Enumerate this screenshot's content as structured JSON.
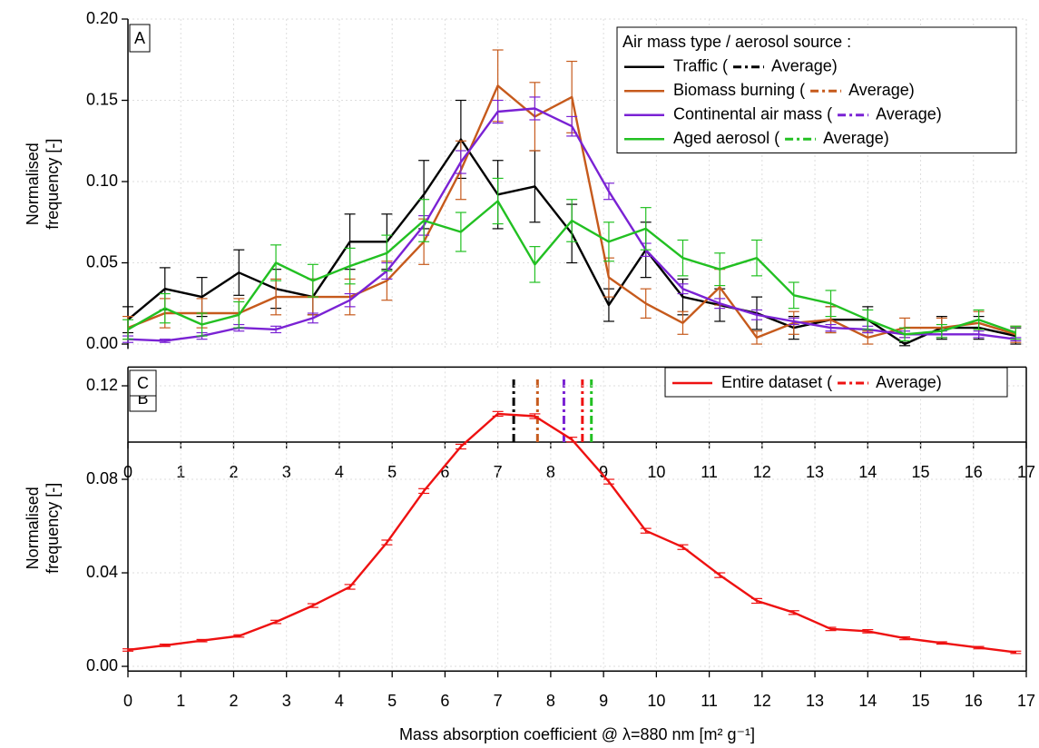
{
  "chart_data": [
    {
      "type": "line",
      "panel_label": "A",
      "y_label": [
        "Normalised",
        "frequency [-]"
      ],
      "legend_title": "Air mass type / aerosol source :",
      "legend_open": "(",
      "legend_close": "Average)",
      "x": [
        0,
        0.7,
        1.4,
        2.1,
        2.8,
        3.5,
        4.2,
        4.9,
        5.6,
        6.3,
        7.0,
        7.7,
        8.4,
        9.1,
        9.8,
        10.5,
        11.2,
        11.9,
        12.6,
        13.3,
        14.0,
        14.7,
        15.4,
        16.1,
        16.8
      ],
      "xlim": [
        0,
        17
      ],
      "xticks": [
        0,
        1,
        2,
        3,
        4,
        5,
        6,
        7,
        8,
        9,
        10,
        11,
        12,
        13,
        14,
        15,
        16,
        17
      ],
      "ylim": [
        -0.003,
        0.2
      ],
      "yticks": [
        {
          "value": 0,
          "label": "0.00"
        },
        0.05,
        {
          "value": 0.1,
          "label": "0.10"
        },
        0.15,
        {
          "value": 0.2,
          "label": "0.20"
        }
      ],
      "grid": true,
      "series": [
        {
          "name": "Traffic",
          "color": "#000000",
          "average": 7.3,
          "values": [
            0.015,
            0.034,
            0.029,
            0.044,
            0.034,
            0.029,
            0.063,
            0.063,
            0.092,
            0.126,
            0.092,
            0.097,
            0.068,
            0.024,
            0.058,
            0.029,
            0.024,
            0.019,
            0.01,
            0.015,
            0.015,
            0.0,
            0.01,
            0.01,
            0.005
          ],
          "errors": [
            0.008,
            0.013,
            0.012,
            0.014,
            0.012,
            0.011,
            0.017,
            0.017,
            0.021,
            0.024,
            0.021,
            0.022,
            0.018,
            0.01,
            0.017,
            0.011,
            0.01,
            0.01,
            0.007,
            0.008,
            0.008,
            0.001,
            0.007,
            0.007,
            0.005
          ]
        },
        {
          "name": "Biomass burning",
          "color": "#c65a1c",
          "average": 7.75,
          "values": [
            0.01,
            0.019,
            0.019,
            0.019,
            0.029,
            0.029,
            0.029,
            0.039,
            0.063,
            0.107,
            0.159,
            0.14,
            0.152,
            0.041,
            0.025,
            0.013,
            0.035,
            0.004,
            0.013,
            0.015,
            0.004,
            0.01,
            0.01,
            0.013,
            0.006
          ],
          "errors": [
            0.007,
            0.009,
            0.009,
            0.009,
            0.011,
            0.011,
            0.011,
            0.012,
            0.014,
            0.018,
            0.022,
            0.021,
            0.022,
            0.012,
            0.009,
            0.007,
            0.011,
            0.004,
            0.007,
            0.008,
            0.004,
            0.006,
            0.006,
            0.007,
            0.005
          ]
        },
        {
          "name": "Continental air mass",
          "color": "#7a22d4",
          "average": 8.25,
          "values": [
            0.003,
            0.002,
            0.005,
            0.01,
            0.009,
            0.016,
            0.027,
            0.045,
            0.073,
            0.112,
            0.143,
            0.145,
            0.134,
            0.094,
            0.058,
            0.034,
            0.025,
            0.018,
            0.014,
            0.01,
            0.009,
            0.006,
            0.006,
            0.006,
            0.003
          ],
          "errors": [
            0.002,
            0.001,
            0.002,
            0.002,
            0.002,
            0.003,
            0.004,
            0.005,
            0.006,
            0.007,
            0.007,
            0.007,
            0.006,
            0.005,
            0.004,
            0.003,
            0.003,
            0.003,
            0.002,
            0.002,
            0.002,
            0.002,
            0.002,
            0.002,
            0.001
          ]
        },
        {
          "name": "Aged aerosol",
          "color": "#22c022",
          "average": 8.77,
          "values": [
            0.009,
            0.022,
            0.012,
            0.018,
            0.05,
            0.039,
            0.048,
            0.056,
            0.076,
            0.069,
            0.088,
            0.049,
            0.076,
            0.063,
            0.071,
            0.053,
            0.046,
            0.053,
            0.03,
            0.025,
            0.015,
            0.006,
            0.008,
            0.015,
            0.007
          ],
          "errors": [
            0.006,
            0.009,
            0.007,
            0.008,
            0.011,
            0.01,
            0.011,
            0.011,
            0.013,
            0.012,
            0.014,
            0.011,
            0.013,
            0.012,
            0.013,
            0.011,
            0.01,
            0.011,
            0.008,
            0.008,
            0.006,
            0.004,
            0.004,
            0.006,
            0.004
          ]
        }
      ]
    },
    {
      "type": "average-markers",
      "panel_label": "B",
      "xlim": [
        0,
        17
      ],
      "xticks": [
        0,
        1,
        2,
        3,
        4,
        5,
        6,
        7,
        8,
        9,
        10,
        11,
        12,
        13,
        14,
        15,
        16,
        17
      ]
    },
    {
      "type": "line",
      "panel_label": "C",
      "y_label": [
        "Normalised",
        "frequency [-]"
      ],
      "x_label": "Mass absorption coefficient @ λ=880 nm [m² g⁻¹]",
      "legend_open": "(",
      "legend_close": "Average)",
      "x": [
        0,
        0.7,
        1.4,
        2.1,
        2.8,
        3.5,
        4.2,
        4.9,
        5.6,
        6.3,
        7.0,
        7.7,
        8.4,
        9.1,
        9.8,
        10.5,
        11.2,
        11.9,
        12.6,
        13.3,
        14.0,
        14.7,
        15.4,
        16.1,
        16.8
      ],
      "xlim": [
        0,
        17
      ],
      "xticks": [
        0,
        1,
        2,
        3,
        4,
        5,
        6,
        7,
        8,
        9,
        10,
        11,
        12,
        13,
        14,
        15,
        16,
        17
      ],
      "ylim": [
        -0.002,
        0.128
      ],
      "yticks": [
        {
          "value": 0,
          "label": "0.00"
        },
        0.04,
        0.08,
        0.12
      ],
      "grid": true,
      "series": [
        {
          "name": "Entire dataset",
          "color": "#ee1111",
          "average": 8.6,
          "values": [
            0.007,
            0.009,
            0.011,
            0.013,
            0.019,
            0.026,
            0.034,
            0.053,
            0.075,
            0.094,
            0.108,
            0.107,
            0.097,
            0.079,
            0.058,
            0.051,
            0.039,
            0.028,
            0.023,
            0.016,
            0.015,
            0.012,
            0.01,
            0.008,
            0.006
          ],
          "errors": [
            0.0005,
            0.0005,
            0.0005,
            0.0005,
            0.0007,
            0.0008,
            0.001,
            0.001,
            0.001,
            0.001,
            0.001,
            0.001,
            0.001,
            0.001,
            0.001,
            0.001,
            0.001,
            0.001,
            0.0008,
            0.0007,
            0.0007,
            0.0006,
            0.0005,
            0.0005,
            0.0005
          ]
        }
      ]
    }
  ]
}
